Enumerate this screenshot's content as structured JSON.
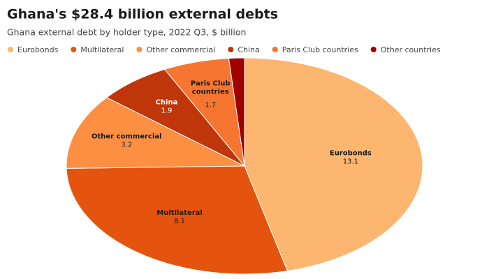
{
  "chart_data": {
    "type": "pie",
    "title": "Ghana's $28.4 billion external debts",
    "subtitle": "Ghana external debt by holder type, 2022 Q3, $ billion",
    "series": [
      {
        "name": "Eurobonds",
        "color": "#fdb670",
        "values": [
          13.1
        ]
      },
      {
        "name": "Multilateral",
        "color": "#e4540e",
        "values": [
          8.1
        ]
      },
      {
        "name": "Other commercial",
        "color": "#fd8f42",
        "values": [
          3.2
        ]
      },
      {
        "name": "China",
        "color": "#bf360b",
        "values": [
          1.9
        ]
      },
      {
        "name": "Paris Club countries",
        "color": "#f67530",
        "values": [
          1.7
        ]
      },
      {
        "name": "Other countries",
        "color": "#a00000",
        "values": [
          0.4
        ]
      }
    ]
  }
}
